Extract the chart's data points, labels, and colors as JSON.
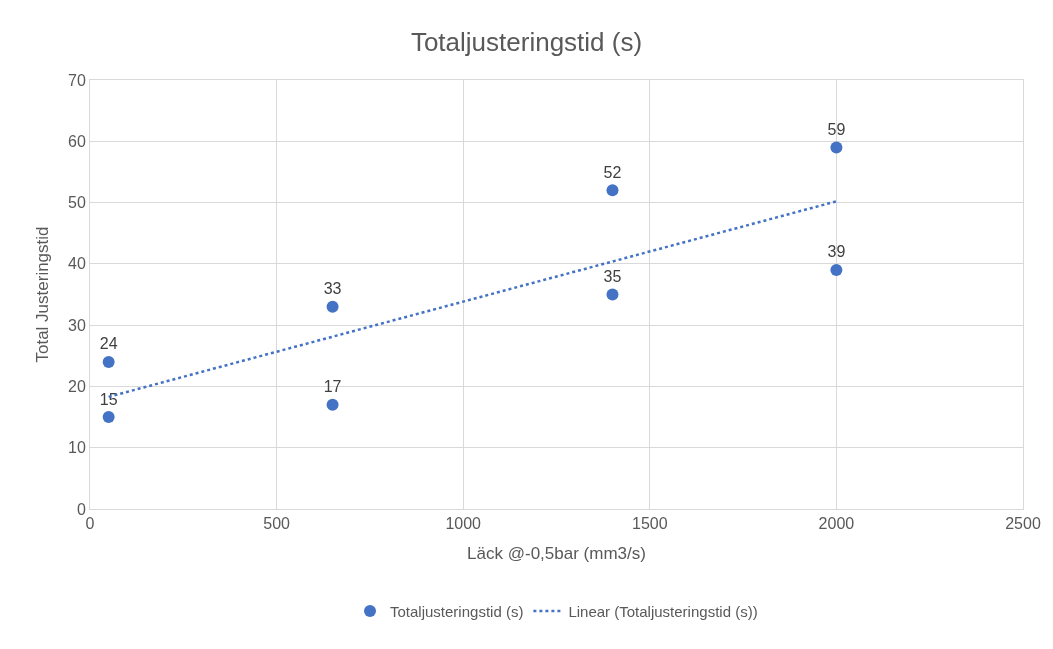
{
  "chart_data": {
    "type": "scatter",
    "title": "Totaljusteringstid (s)",
    "xlabel": "Läck @-0,5bar (mm3/s)",
    "ylabel": "Total Justeringstid",
    "xlim": [
      0,
      2500
    ],
    "xticks": [
      0,
      500,
      1000,
      1500,
      2000,
      2500
    ],
    "ylim": [
      0,
      70
    ],
    "yticks": [
      0,
      10,
      20,
      30,
      40,
      50,
      60,
      70
    ],
    "grid": true,
    "legend": "bottom",
    "series": [
      {
        "name": "Totaljusteringstid (s)",
        "marker": "circle",
        "color": "#4472c4",
        "x": [
          50,
          50,
          650,
          650,
          1400,
          1400,
          2000,
          2000
        ],
        "values": [
          24,
          15,
          33,
          17,
          52,
          35,
          59,
          39
        ],
        "value_labels": [
          "24",
          "15",
          "33",
          "17",
          "52",
          "35",
          "59",
          "39"
        ]
      },
      {
        "name": "Linear (Totaljusteringstid (s))",
        "type": "line",
        "line_style": "dotted",
        "color": "#4472c4",
        "x": [
          50,
          2000
        ],
        "values": [
          18.3,
          50.2
        ]
      }
    ]
  }
}
